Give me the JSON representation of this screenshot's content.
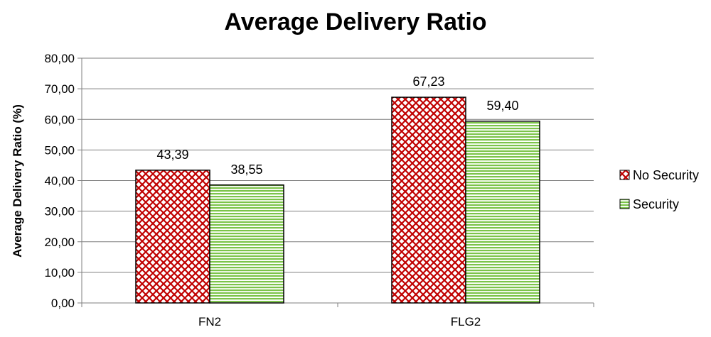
{
  "chart_data": {
    "type": "bar",
    "title": "Average Delivery Ratio",
    "ylabel": "Average Delivery Ratio (%)",
    "xlabel": "",
    "categories": [
      "FN2",
      "FLG2"
    ],
    "series": [
      {
        "name": "No Security",
        "values": [
          43.39,
          67.23
        ],
        "labels": [
          "43,39",
          "67,23"
        ],
        "color": "#c00000",
        "pattern": "crosshatch"
      },
      {
        "name": "Security",
        "values": [
          38.55,
          59.4
        ],
        "labels": [
          "38,55",
          "59,40"
        ],
        "color": "#7cc44a",
        "pattern": "horizontal-lines"
      }
    ],
    "ylim": [
      0,
      80
    ],
    "yticks": [
      0,
      10,
      20,
      30,
      40,
      50,
      60,
      70,
      80
    ],
    "ytick_labels": [
      "0,00",
      "10,00",
      "20,00",
      "30,00",
      "40,00",
      "50,00",
      "60,00",
      "70,00",
      "80,00"
    ],
    "grid": true,
    "legend_position": "right"
  }
}
